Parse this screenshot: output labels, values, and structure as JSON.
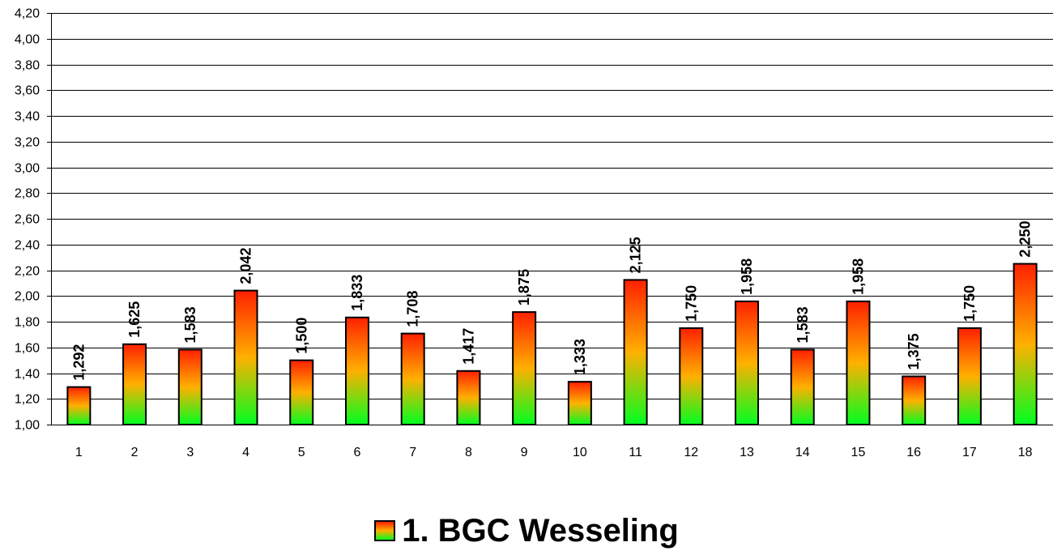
{
  "chart_data": {
    "type": "bar",
    "categories": [
      "1",
      "2",
      "3",
      "4",
      "5",
      "6",
      "7",
      "8",
      "9",
      "10",
      "11",
      "12",
      "13",
      "14",
      "15",
      "16",
      "17",
      "18"
    ],
    "series": [
      {
        "name": "1. BGC Wesseling",
        "values": [
          1.292,
          1.625,
          1.583,
          2.042,
          1.5,
          1.833,
          1.708,
          1.417,
          1.875,
          1.333,
          2.125,
          1.75,
          1.958,
          1.583,
          1.958,
          1.375,
          1.75,
          2.25
        ],
        "data_labels": [
          "1,292",
          "1,625",
          "1,583",
          "2,042",
          "1,500",
          "1,833",
          "1,708",
          "1,417",
          "1,875",
          "1,333",
          "2,125",
          "1,750",
          "1,958",
          "1,583",
          "1,958",
          "1,375",
          "1,750",
          "2,250"
        ]
      }
    ],
    "ylim": [
      1.0,
      4.2
    ],
    "yticks": [
      1.0,
      1.2,
      1.4,
      1.6,
      1.8,
      2.0,
      2.2,
      2.4,
      2.6,
      2.8,
      3.0,
      3.2,
      3.4,
      3.6,
      3.8,
      4.0,
      4.2
    ],
    "ytick_labels": [
      "1,00",
      "1,20",
      "1,40",
      "1,60",
      "1,80",
      "2,00",
      "2,20",
      "2,40",
      "2,60",
      "2,80",
      "3,00",
      "3,20",
      "3,40",
      "3,60",
      "3,80",
      "4,00",
      "4,20"
    ],
    "grid": "horizontal",
    "legend_position": "bottom",
    "colors": {
      "bar_top": "#ff2000",
      "bar_middle": "#ffb000",
      "bar_bottom": "#00ff20",
      "bar_outline": "#000000",
      "gridline": "#000000"
    }
  }
}
